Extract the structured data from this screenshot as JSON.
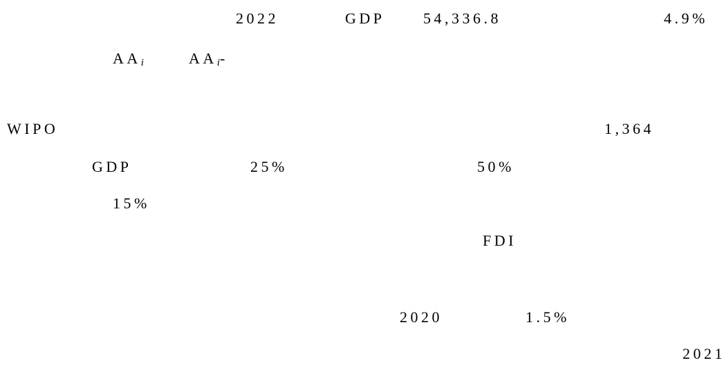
{
  "paragraphs": [
    {
      "tokens": [
        {
          "text": "2022"
        },
        {
          "text": "GDP"
        },
        {
          "text": "54,336.8"
        },
        {
          "text": "4.9%"
        }
      ]
    },
    {
      "tokens": [
        {
          "text": "AA",
          "sub": "i"
        },
        {
          "text": "AA",
          "sub": "i",
          "after": "-"
        }
      ]
    },
    {
      "tokens": [
        {
          "text": "WIPO"
        },
        {
          "text": "1,364"
        }
      ]
    },
    {
      "tokens": [
        {
          "text": "GDP"
        },
        {
          "text": "25%"
        },
        {
          "text": "50%"
        }
      ]
    },
    {
      "tokens": [
        {
          "text": "15%"
        }
      ]
    },
    {
      "tokens": [
        {
          "text": "FDI"
        }
      ]
    },
    {
      "tokens": [
        {
          "text": "2020"
        },
        {
          "text": "1.5%"
        }
      ]
    },
    {
      "tokens": [
        {
          "text": "2021"
        }
      ]
    }
  ]
}
